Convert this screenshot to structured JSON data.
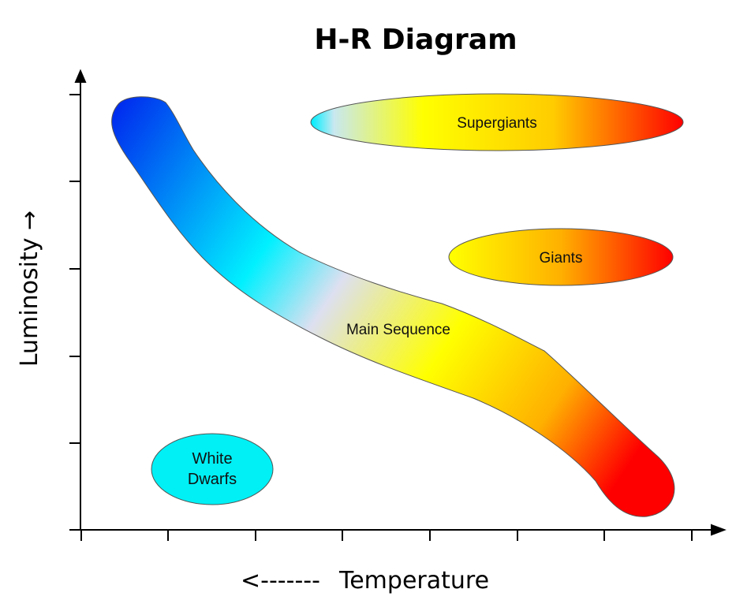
{
  "title": "H-R Diagram",
  "y_axis_label": "Luminosity →",
  "x_axis_arrow": "<-------",
  "x_axis_label": "Temperature",
  "regions": {
    "main_sequence": {
      "label": "Main Sequence"
    },
    "supergiants": {
      "label": "Supergiants"
    },
    "giants": {
      "label": "Giants"
    },
    "white_dwarfs": {
      "line1": "White",
      "line2": "Dwarfs"
    }
  },
  "colors": {
    "hot": "#0033ee",
    "cyan": "#00f0ff",
    "yellow": "#ffff00",
    "orange": "#ffbb00",
    "cool": "#ff0000",
    "white_dwarf_fill": "#00f0f5"
  }
}
